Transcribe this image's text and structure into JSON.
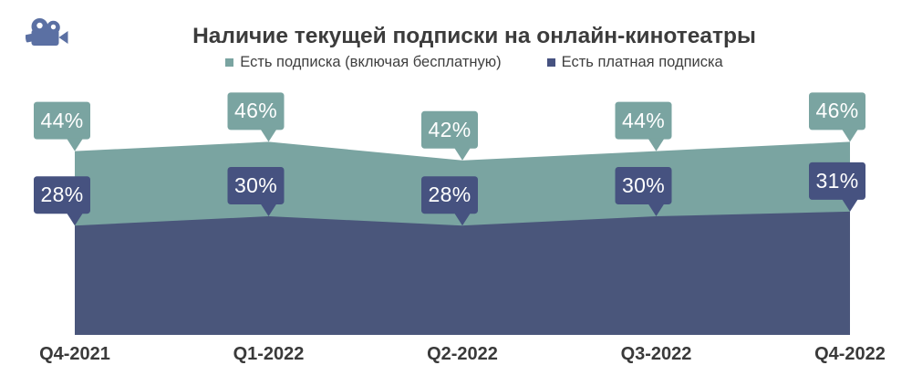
{
  "header": {
    "title": "Наличие текущей подписки на онлайн-кинотеатры"
  },
  "legend": {
    "items": [
      {
        "label": "Есть подписка (включая бесплатную)",
        "color": "#7AA4A1"
      },
      {
        "label": "Есть платная подписка",
        "color": "#465280"
      }
    ]
  },
  "icon": {
    "name": "movie-camera-icon",
    "color": "#5B70A3"
  },
  "chart_data": {
    "type": "area",
    "title": "Наличие текущей подписки на онлайн-кинотеатры",
    "categories": [
      "Q4-2021",
      "Q1-2022",
      "Q2-2022",
      "Q3-2022",
      "Q4-2022"
    ],
    "series": [
      {
        "name": "Есть подписка (включая бесплатную)",
        "values": [
          44,
          46,
          42,
          44,
          46
        ],
        "color": "#7AA4A1",
        "callout_color": "#7AA4A1"
      },
      {
        "name": "Есть платная подписка",
        "values": [
          28,
          30,
          28,
          30,
          31
        ],
        "color": "#4A567B",
        "callout_color": "#465280"
      }
    ],
    "data_label_suffix": "%",
    "data_labels": "callout-boxes",
    "legend_position": "top",
    "grid": false,
    "y_axis_visible": false,
    "x_axis_labels_bold": true
  }
}
